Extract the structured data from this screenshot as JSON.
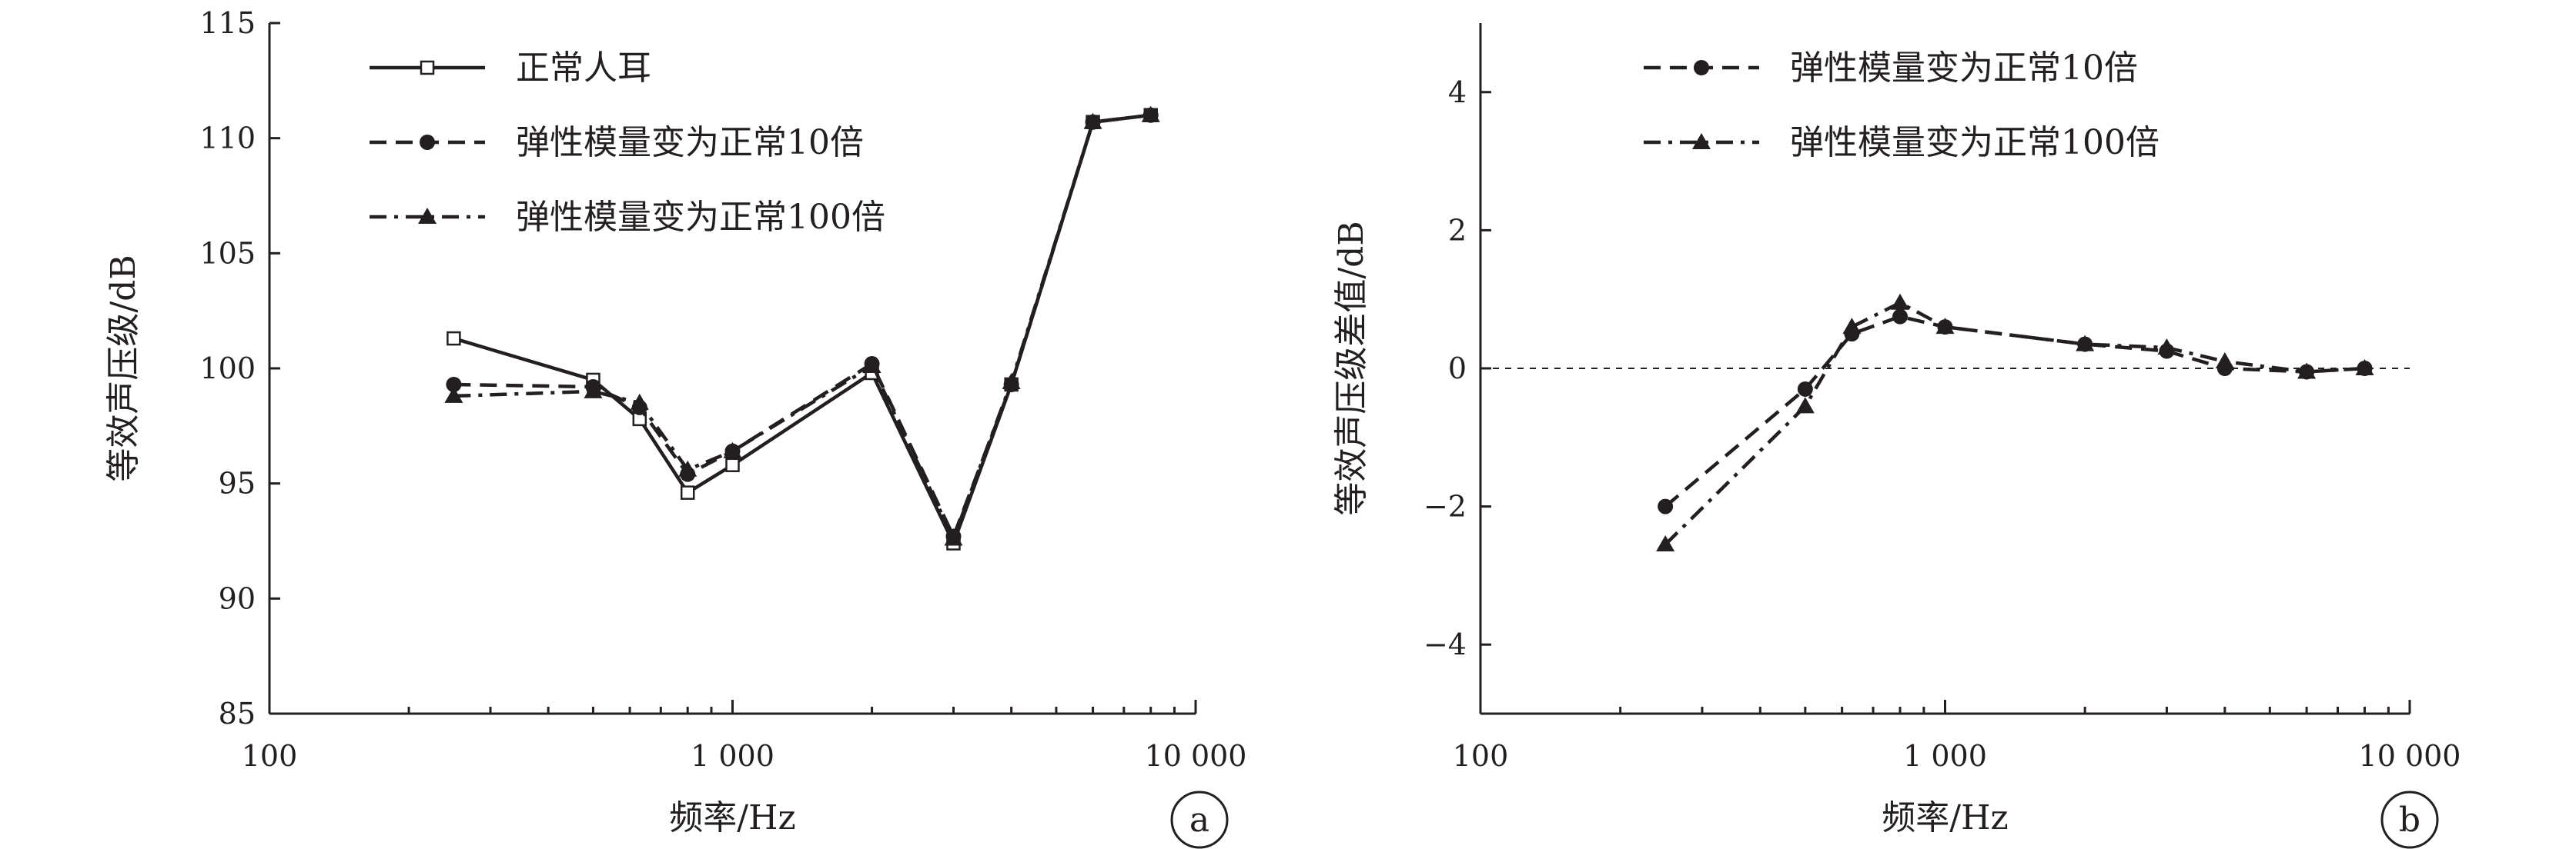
{
  "chart_data": [
    {
      "type": "line",
      "panel_label": "a",
      "xlabel": "频率/Hz",
      "ylabel": "等效声压级/dB",
      "xscale": "log",
      "xlim": [
        100,
        10000
      ],
      "ylim": [
        85,
        115
      ],
      "x_tick_labels": [
        "100",
        "1 000",
        "10 000"
      ],
      "y_tick_labels": [
        "85",
        "90",
        "95",
        "100",
        "105",
        "110",
        "115"
      ],
      "legend_position": "top-left",
      "series": [
        {
          "name": "正常人耳",
          "marker": "open-square",
          "line": "solid",
          "color": "#231f20",
          "x": [
            250,
            500,
            630,
            800,
            1000,
            2000,
            3000,
            4000,
            6000,
            8000
          ],
          "y": [
            101.3,
            99.5,
            97.8,
            94.6,
            95.8,
            99.8,
            92.4,
            99.3,
            110.7,
            111.0
          ]
        },
        {
          "name": "弹性模量变为正常10倍",
          "marker": "filled-circle",
          "line": "dashed",
          "color": "#231f20",
          "x": [
            250,
            500,
            630,
            800,
            1000,
            2000,
            3000,
            4000,
            6000,
            8000
          ],
          "y": [
            99.3,
            99.2,
            98.3,
            95.4,
            96.4,
            100.2,
            92.7,
            99.3,
            110.7,
            111.0
          ]
        },
        {
          "name": "弹性模量变为正常100倍",
          "marker": "filled-triangle",
          "line": "dash-dot",
          "color": "#231f20",
          "x": [
            250,
            500,
            630,
            800,
            1000,
            2000,
            3000,
            4000,
            6000,
            8000
          ],
          "y": [
            98.8,
            99.0,
            98.5,
            95.6,
            96.4,
            100.1,
            92.6,
            99.4,
            110.7,
            111.0
          ]
        }
      ]
    },
    {
      "type": "line",
      "panel_label": "b",
      "xlabel": "频率/Hz",
      "ylabel": "等效声压级差值/dB",
      "xscale": "log",
      "xlim": [
        100,
        10000
      ],
      "ylim": [
        -5,
        5
      ],
      "x_tick_labels": [
        "100",
        "1 000",
        "10 000"
      ],
      "y_tick_labels": [
        "−4",
        "−2",
        "0",
        "2",
        "4"
      ],
      "reference_line": {
        "y": 0,
        "style": "dashed"
      },
      "legend_position": "top-center",
      "series": [
        {
          "name": "弹性模量变为正常10倍",
          "marker": "filled-circle",
          "line": "dashed",
          "color": "#231f20",
          "x": [
            250,
            500,
            630,
            800,
            1000,
            2000,
            3000,
            4000,
            6000,
            8000
          ],
          "y": [
            -2.0,
            -0.3,
            0.5,
            0.75,
            0.6,
            0.35,
            0.25,
            0.0,
            -0.05,
            0.0
          ]
        },
        {
          "name": "弹性模量变为正常100倍",
          "marker": "filled-triangle",
          "line": "dash-dot",
          "color": "#231f20",
          "x": [
            250,
            500,
            630,
            800,
            1000,
            2000,
            3000,
            4000,
            6000,
            8000
          ],
          "y": [
            -2.55,
            -0.55,
            0.6,
            0.95,
            0.6,
            0.35,
            0.3,
            0.1,
            -0.05,
            0.0
          ]
        }
      ]
    }
  ]
}
